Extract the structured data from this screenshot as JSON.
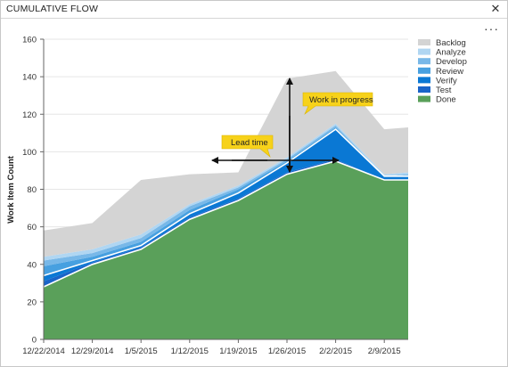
{
  "window": {
    "title": "CUMULATIVE FLOW",
    "close_icon": "close-icon",
    "more_icon": "more-options-icon",
    "more_glyph": "···",
    "close_glyph": "✕"
  },
  "chart_data": {
    "type": "area",
    "stacked": true,
    "ylabel": "Work Item Count",
    "ylim": [
      0,
      160
    ],
    "yticks": [
      0,
      20,
      40,
      60,
      80,
      100,
      120,
      140,
      160
    ],
    "xlabels": [
      "12/22/2014",
      "12/29/2014",
      "1/5/2015",
      "1/12/2015",
      "1/19/2015",
      "1/26/2015",
      "2/2/2015",
      "2/9/2015"
    ],
    "x_points": [
      "12/22/2014",
      "12/29/2014",
      "1/5/2015",
      "1/12/2015",
      "1/19/2015",
      "1/26/2015",
      "2/2/2015",
      "2/9/2015",
      "2/12/2015"
    ],
    "grid": "horizontal",
    "legend_position": "right",
    "series": [
      {
        "name": "Done",
        "color": "#5aa05a",
        "values": [
          28,
          40,
          48,
          64,
          74,
          88,
          95,
          85,
          85
        ]
      },
      {
        "name": "Test",
        "color": "#1a64c8",
        "values": [
          3,
          1,
          1,
          1,
          1,
          1,
          1,
          0,
          0
        ]
      },
      {
        "name": "Verify",
        "color": "#0a78d4",
        "values": [
          3,
          1,
          1,
          2,
          3,
          5,
          16,
          2,
          2
        ]
      },
      {
        "name": "Review",
        "color": "#47a0e0",
        "values": [
          5,
          2,
          2,
          2,
          2,
          1,
          1,
          0,
          0
        ]
      },
      {
        "name": "Develop",
        "color": "#78b8e8",
        "values": [
          3,
          2,
          2,
          2,
          1,
          1,
          1,
          0,
          1
        ]
      },
      {
        "name": "Analyze",
        "color": "#b0d6f2",
        "values": [
          2,
          2,
          2,
          1,
          1,
          1,
          1,
          1,
          1
        ]
      },
      {
        "name": "Backlog",
        "color": "#d4d4d4",
        "values": [
          14,
          14,
          29,
          16,
          7,
          42,
          28,
          24,
          24
        ]
      }
    ],
    "annotations": [
      {
        "text": "Work in progress",
        "type": "vertical-arrow"
      },
      {
        "text": "Lead time",
        "type": "horizontal-arrow"
      }
    ]
  }
}
